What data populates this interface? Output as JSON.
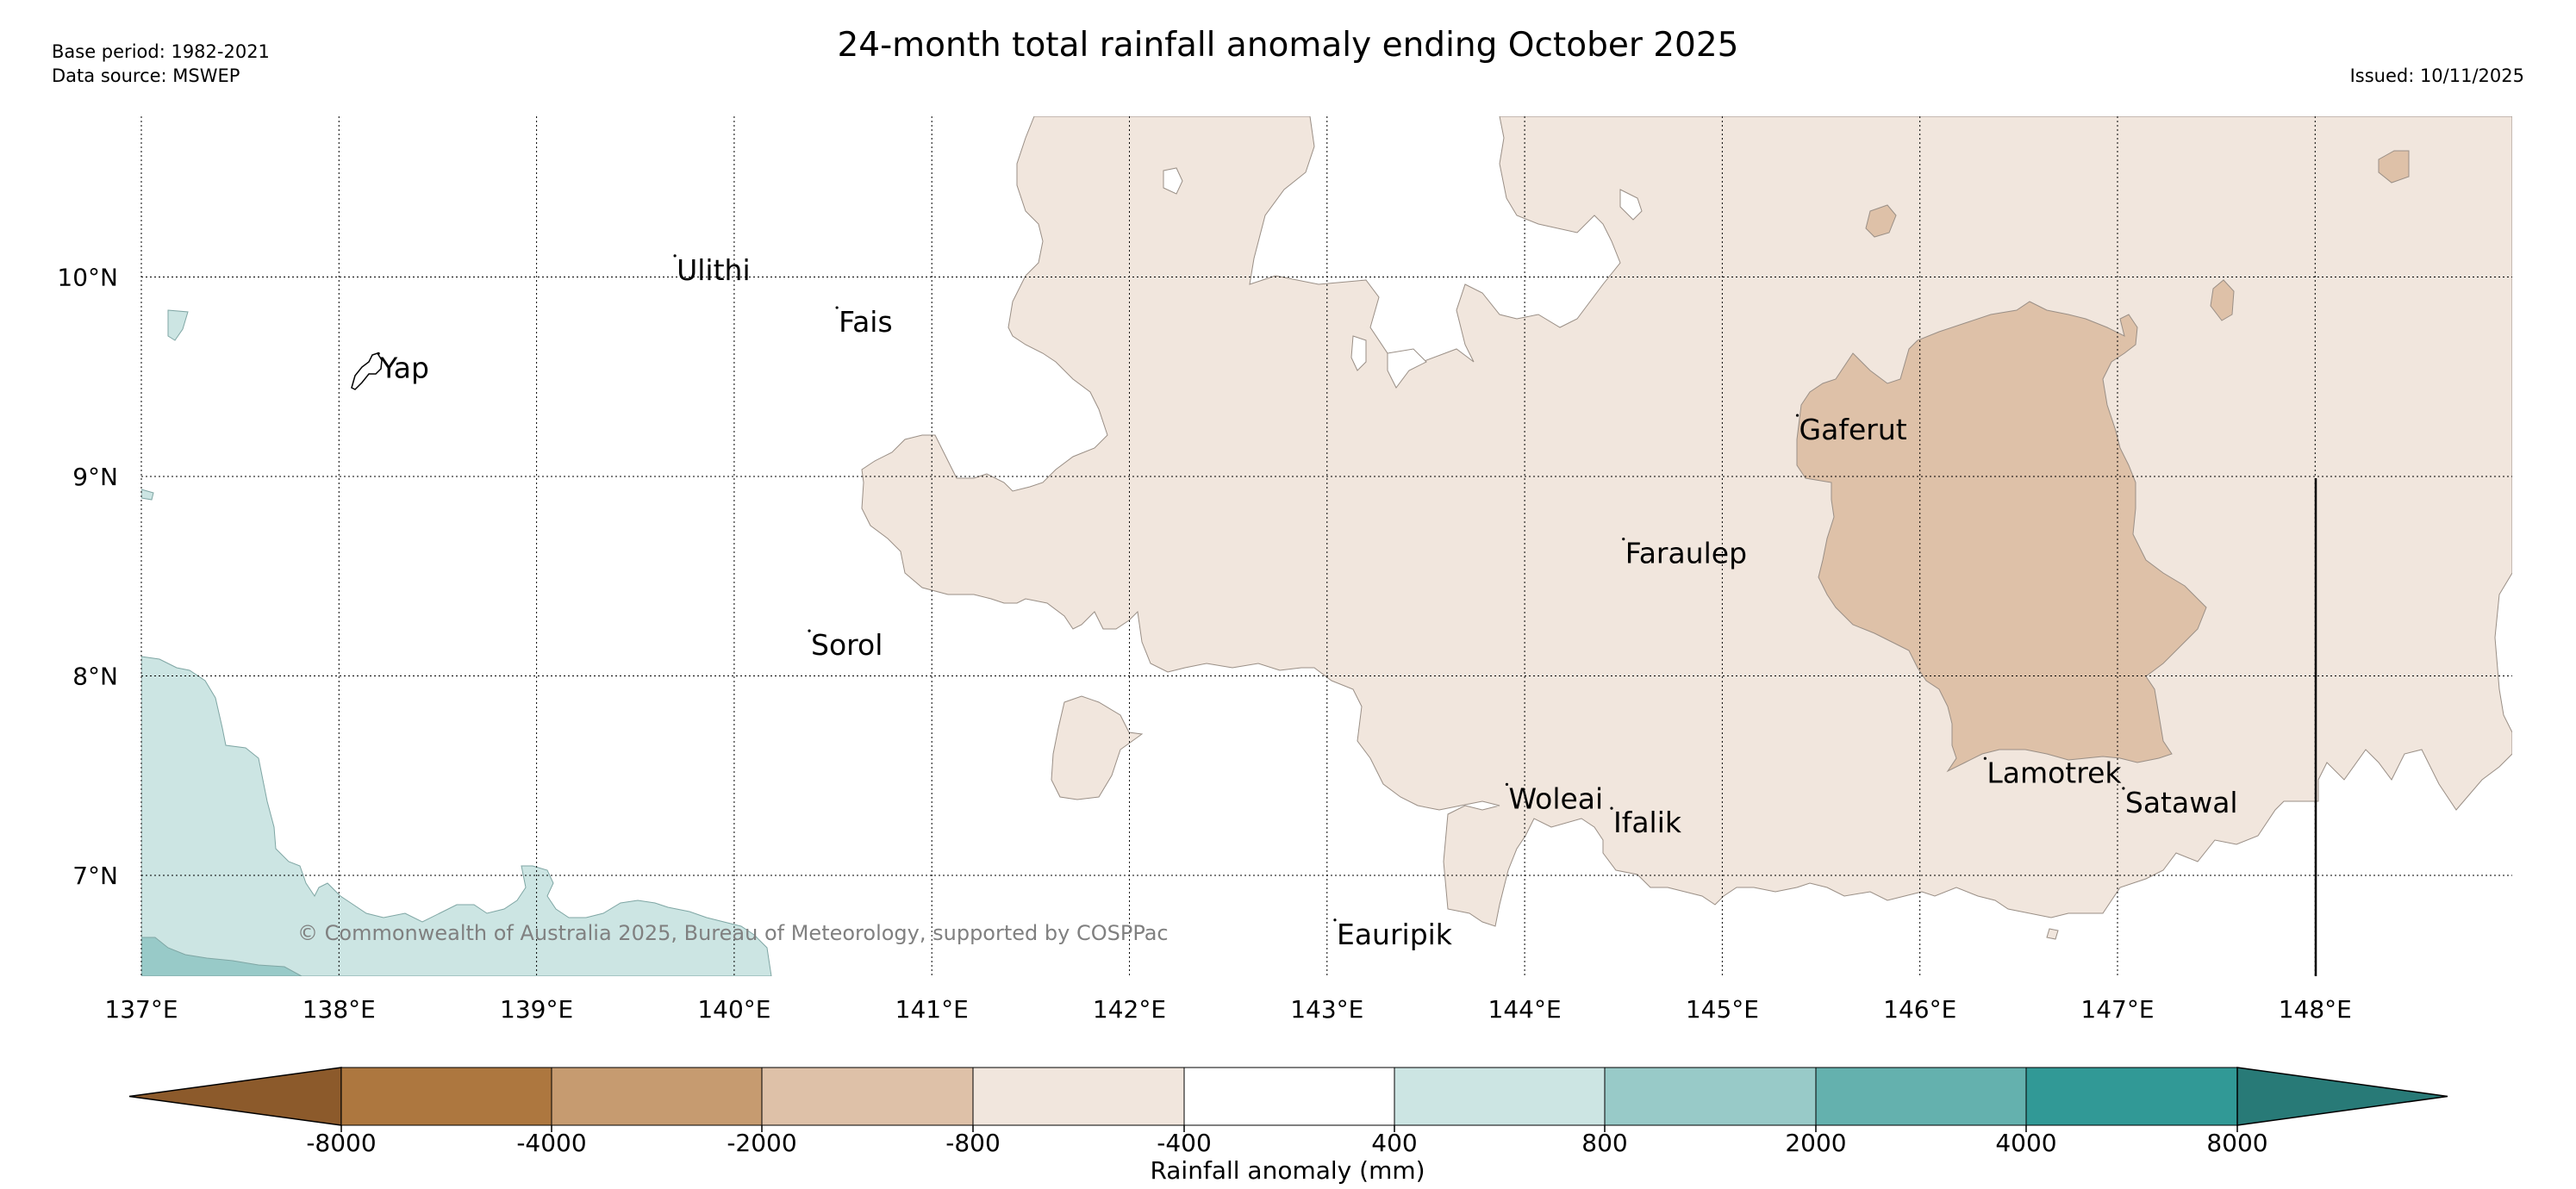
{
  "header": {
    "title": "24-month total rainfall anomaly ending October 2025",
    "base_period": "Base period: 1982-2021",
    "data_source": "Data source: MSWEP",
    "issued": "Issued: 10/11/2025"
  },
  "map": {
    "lon_ticks": [
      "137°E",
      "138°E",
      "139°E",
      "140°E",
      "141°E",
      "142°E",
      "143°E",
      "144°E",
      "145°E",
      "146°E",
      "147°E",
      "148°E"
    ],
    "lat_ticks": [
      "10°N",
      "9°N",
      "8°N",
      "7°N"
    ],
    "places": [
      {
        "name": "Yap",
        "lon": 138.2,
        "lat": 9.53
      },
      {
        "name": "Ulithi",
        "lon": 139.7,
        "lat": 10.02
      },
      {
        "name": "Fais",
        "lon": 140.52,
        "lat": 9.76
      },
      {
        "name": "Gaferut",
        "lon": 145.38,
        "lat": 9.22
      },
      {
        "name": "Faraulep",
        "lon": 144.5,
        "lat": 8.6
      },
      {
        "name": "Sorol",
        "lon": 140.38,
        "lat": 8.14
      },
      {
        "name": "Woleai",
        "lon": 143.91,
        "lat": 7.37
      },
      {
        "name": "Ifalik",
        "lon": 144.44,
        "lat": 7.25
      },
      {
        "name": "Lamotrek",
        "lon": 146.33,
        "lat": 7.5
      },
      {
        "name": "Satawal",
        "lon": 147.03,
        "lat": 7.35
      },
      {
        "name": "Eauripik",
        "lon": 143.04,
        "lat": 6.69
      }
    ],
    "copyright": "© Commonwealth of Australia 2025, Bureau of Meteorology, supported by COSPPac"
  },
  "colorbar": {
    "label": "Rainfall anomaly (mm)",
    "ticks": [
      "-8000",
      "-4000",
      "-2000",
      "-800",
      "-400",
      "400",
      "800",
      "2000",
      "4000",
      "8000"
    ],
    "colors": {
      "below_min": "#8c5a2b",
      "b1": "#ad773f",
      "b2": "#c69b70",
      "b3": "#dec1a8",
      "b4": "#f1e6dd",
      "b5": "#ffffff",
      "b6": "#cce5e3",
      "b7": "#98cac8",
      "b8": "#64b1ae",
      "b9": "#319996",
      "above_max": "#287a77"
    }
  }
}
